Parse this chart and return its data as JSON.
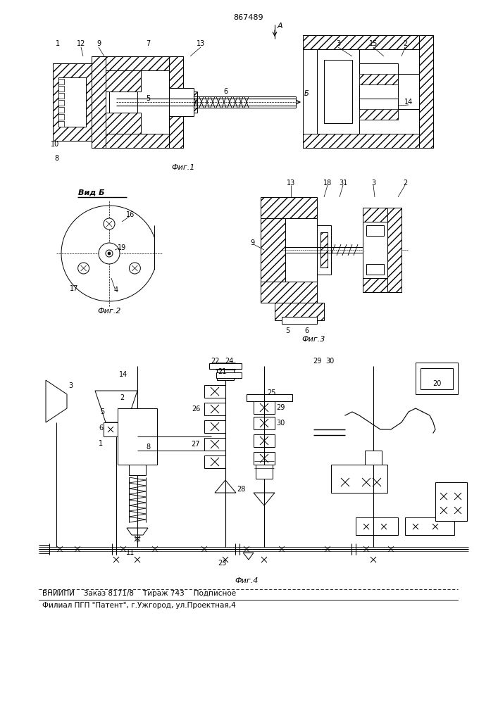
{
  "patent_number": "867489",
  "background_color": "#ffffff",
  "fig_width": 7.07,
  "fig_height": 10.0,
  "footer_line1": "ВНИИПИ    Заказ 8171/8    Тираж 743    Подписное",
  "footer_line2": "Филиал ПГП \"Патент\", г.Ужгород, ул.Проектная,4",
  "fig1_caption": "Фиг.1",
  "fig2_caption": "Фиг.2",
  "fig3_caption": "Фиг.3",
  "fig4_caption": "Фиг.4",
  "vid_b": "Вид Б"
}
